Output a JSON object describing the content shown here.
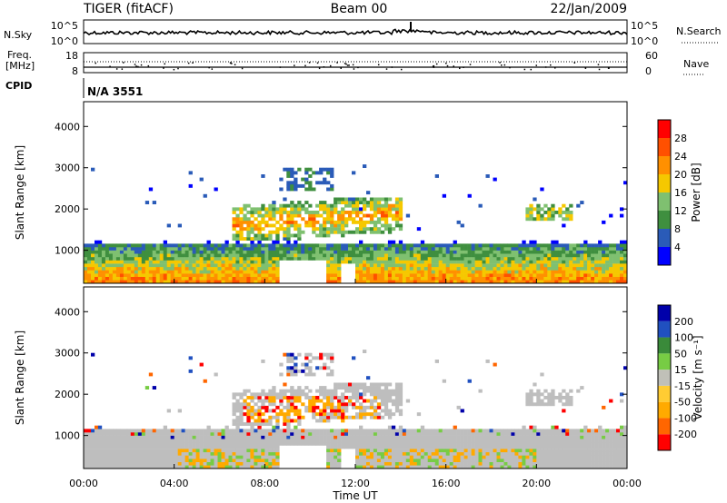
{
  "header": {
    "title": "TIGER (fitACF)",
    "beam": "Beam 00",
    "date": "22/Jan/2009"
  },
  "noise_panel": {
    "left_label": "N.Sky",
    "right_label": "N.Search",
    "left_ticks": [
      "10^5",
      "10^0"
    ],
    "right_ticks": [
      "10^5",
      "10^0"
    ]
  },
  "freq_panel": {
    "left_label_line1": "Freq.",
    "left_label_line2": "[MHz]",
    "left_ticks": [
      "18",
      "8"
    ],
    "right_label": "Nave",
    "right_ticks": [
      "60",
      "0"
    ]
  },
  "cpid": {
    "label": "CPID",
    "value": "N/A 3551"
  },
  "colors": {
    "power": [
      "#0000ff",
      "#2a5bb8",
      "#3f8f3f",
      "#7fc070",
      "#f5c800",
      "#ff9000",
      "#ff5000",
      "#ff0000"
    ],
    "velocity": [
      "#0000aa",
      "#2050c0",
      "#3a8a3a",
      "#77cc44",
      "#c0c0b8",
      "#ffcc33",
      "#ffaa00",
      "#ff6600",
      "#ff0000"
    ],
    "ground_scatter": "#bebebe"
  },
  "chart_data": [
    {
      "type": "heatmap",
      "name": "power",
      "ylabel": "Slant Range [km]",
      "yticks": [
        "1000",
        "2000",
        "3000",
        "4000"
      ],
      "ylim": [
        200,
        4600
      ],
      "colorbar_label": "Power [dB]",
      "colorbar_ticks": [
        "4",
        "8",
        "12",
        "16",
        "20",
        "24",
        "28"
      ],
      "colorbar_range": [
        0,
        32
      ]
    },
    {
      "type": "heatmap",
      "name": "velocity",
      "ylabel": "Slant Range [km]",
      "yticks": [
        "1000",
        "2000",
        "3000",
        "4000"
      ],
      "ylim": [
        200,
        4600
      ],
      "xlabel": "Time UT",
      "xticks": [
        "00:00",
        "04:00",
        "08:00",
        "12:00",
        "16:00",
        "20:00",
        "00:00"
      ],
      "xlim_hours": [
        0,
        24
      ],
      "colorbar_label": "Velocity [m s⁻¹]",
      "colorbar_ticks": [
        "200",
        "100",
        "50",
        "15",
        "-15",
        "-50",
        "-100",
        "-200"
      ]
    }
  ]
}
